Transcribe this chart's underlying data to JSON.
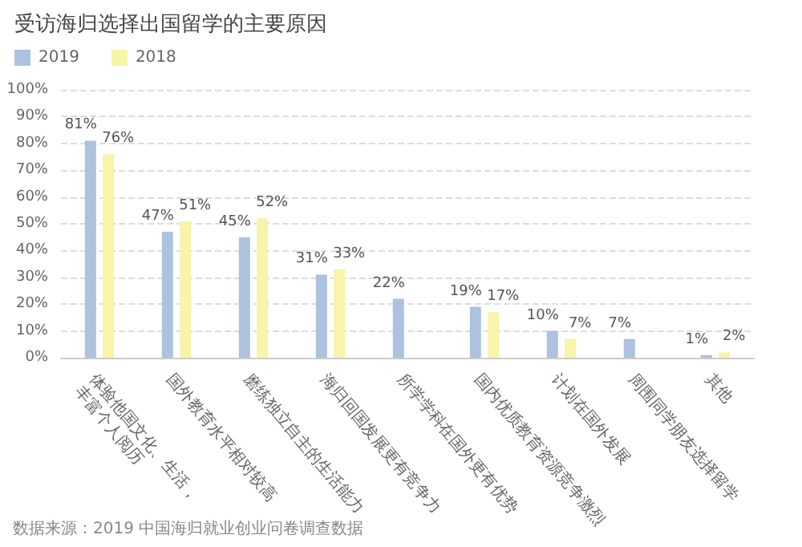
{
  "chart_data": {
    "type": "bar",
    "title": "受访海归选择出国留学的主要原因",
    "categories": [
      "体验他国文化、生活，丰富个人阅历",
      "国外教育水平相对较高",
      "磨练独立自主的生活能力",
      "海归回国发展更有竞争力",
      "所学学科在国外更有优势",
      "国内优质教育资源竞争激烈",
      "计划在国外发展",
      "周围同学朋友选择留学",
      "其他"
    ],
    "series": [
      {
        "name": "2019",
        "color": "#adc2de",
        "values": [
          81,
          47,
          45,
          31,
          22,
          19,
          10,
          7,
          1
        ],
        "value_labels": [
          "81%",
          "47%",
          "45%",
          "31%",
          "22%",
          "19%",
          "10%",
          "7%",
          "1%"
        ]
      },
      {
        "name": "2018",
        "color": "#f8f4a8",
        "values": [
          76,
          51,
          52,
          33,
          null,
          17,
          7,
          null,
          2
        ],
        "value_labels": [
          "76%",
          "51%",
          "52%",
          "33%",
          null,
          "17%",
          "7%",
          null,
          "2%"
        ]
      }
    ],
    "ylim": [
      0,
      100
    ],
    "yticks": [
      {
        "value": 0,
        "label": "0%"
      },
      {
        "value": 10,
        "label": "10%"
      },
      {
        "value": 20,
        "label": "20%"
      },
      {
        "value": 30,
        "label": "30%"
      },
      {
        "value": 40,
        "label": "40%"
      },
      {
        "value": 50,
        "label": "50%"
      },
      {
        "value": 60,
        "label": "60%"
      },
      {
        "value": 70,
        "label": "70%"
      },
      {
        "value": 80,
        "label": "80%"
      },
      {
        "value": 90,
        "label": "90%"
      },
      {
        "value": 100,
        "label": "100%"
      }
    ],
    "grid": "y",
    "legend": "top left",
    "annotations": [
      "数据来源：2019 中国海归就业创业问卷调查数据"
    ]
  }
}
